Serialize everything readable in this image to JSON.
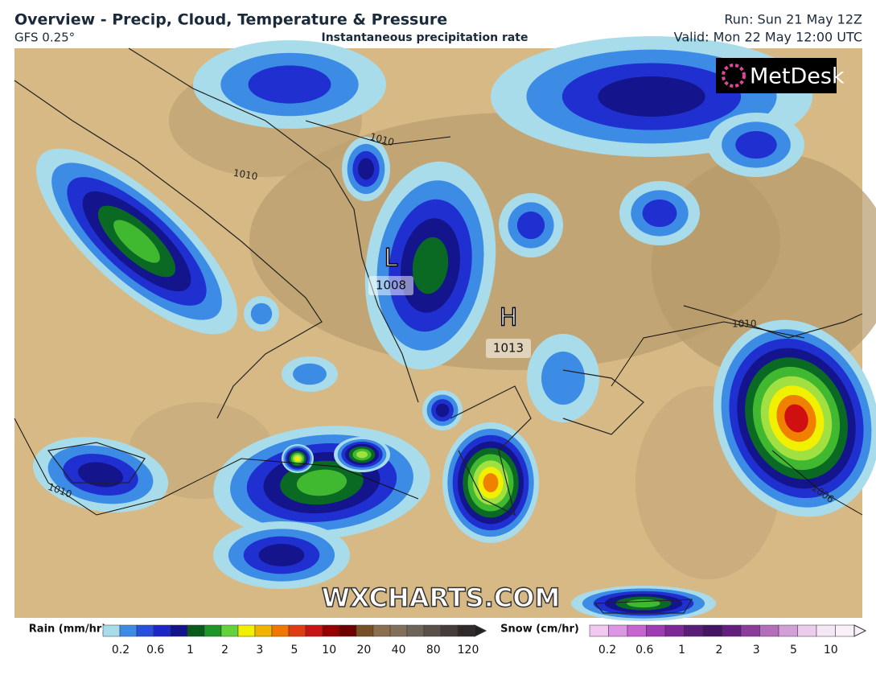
{
  "header": {
    "title": "Overview - Precip, Cloud, Temperature & Pressure",
    "model": "GFS 0.25°",
    "subtitle": "Instantaneous precipitation rate",
    "run": "Run: Sun 21 May 12Z",
    "valid": "Valid: Mon 22 May 12:00 UTC"
  },
  "logo": "MetDesk",
  "watermark": "WXCHARTS.COM",
  "pressure_centers": [
    {
      "symbol": "L",
      "value": 1008
    },
    {
      "symbol": "H",
      "value": 1013
    }
  ],
  "isobar_labels": [
    1010,
    1010,
    1010,
    1010,
    1006
  ],
  "legend": {
    "rain": {
      "label": "Rain (mm/hr)",
      "ticks": [
        0.2,
        0.6,
        1,
        2,
        3,
        5,
        10,
        20,
        40,
        80,
        120
      ],
      "colors": [
        "#a8dcea",
        "#3c8ce6",
        "#2850dc",
        "#1e28c8",
        "#14148c",
        "#0a5a1e",
        "#1e9628",
        "#64d23c",
        "#f0f000",
        "#f0b400",
        "#f07800",
        "#e03c14",
        "#c81414",
        "#960000",
        "#6e0000",
        "#785028",
        "#8c6e50",
        "#82705a",
        "#6e6458",
        "#5a5048",
        "#463c3c",
        "#322a2a"
      ]
    },
    "snow": {
      "label": "Snow (cm/hr)",
      "ticks": [
        0.2,
        0.6,
        1,
        2,
        3,
        5,
        10
      ],
      "colors": [
        "#f0c8f0",
        "#dc96e6",
        "#c864d2",
        "#a03cb4",
        "#7d2896",
        "#5a1e78",
        "#461464",
        "#641e7d",
        "#8c3c9b",
        "#b46eb9",
        "#d2a0d7",
        "#ebcdeb",
        "#f5e6f5",
        "#faf0fa"
      ]
    }
  }
}
